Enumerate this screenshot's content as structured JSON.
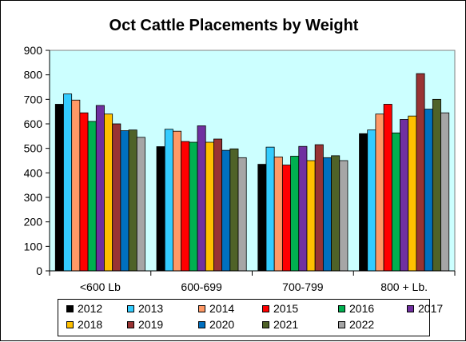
{
  "chart_data": {
    "type": "bar",
    "title": "Oct Cattle Placements by Weight",
    "categories": [
      "<600 Lb",
      "600-699",
      "700-799",
      "800 + Lb."
    ],
    "ylim": [
      0,
      900
    ],
    "yticks": [
      "0",
      "100",
      "200",
      "300",
      "400",
      "500",
      "600",
      "700",
      "800",
      "900"
    ],
    "grid": false,
    "legend_position": "bottom",
    "series": [
      {
        "name": "2012",
        "color": "#000000",
        "values": [
          680,
          507,
          435,
          560
        ]
      },
      {
        "name": "2013",
        "color": "#33CCFF",
        "values": [
          722,
          578,
          505,
          575
        ]
      },
      {
        "name": "2014",
        "color": "#FF9966",
        "values": [
          697,
          570,
          465,
          640
        ]
      },
      {
        "name": "2015",
        "color": "#FF0000",
        "values": [
          645,
          528,
          432,
          680
        ]
      },
      {
        "name": "2016",
        "color": "#00B050",
        "values": [
          610,
          525,
          468,
          563
        ]
      },
      {
        "name": "2017",
        "color": "#7030A0",
        "values": [
          675,
          592,
          508,
          618
        ]
      },
      {
        "name": "2018",
        "color": "#FFC000",
        "values": [
          640,
          525,
          450,
          632
        ]
      },
      {
        "name": "2019",
        "color": "#993333",
        "values": [
          600,
          538,
          515,
          805
        ]
      },
      {
        "name": "2020",
        "color": "#0070C0",
        "values": [
          572,
          492,
          462,
          660
        ]
      },
      {
        "name": "2021",
        "color": "#4F6228",
        "values": [
          575,
          498,
          470,
          700
        ]
      },
      {
        "name": "2022",
        "color": "#A6A6A6",
        "values": [
          545,
          462,
          450,
          645
        ]
      }
    ]
  },
  "colors": {
    "plot_background": "#CCFFFF",
    "axis": "#000000"
  }
}
